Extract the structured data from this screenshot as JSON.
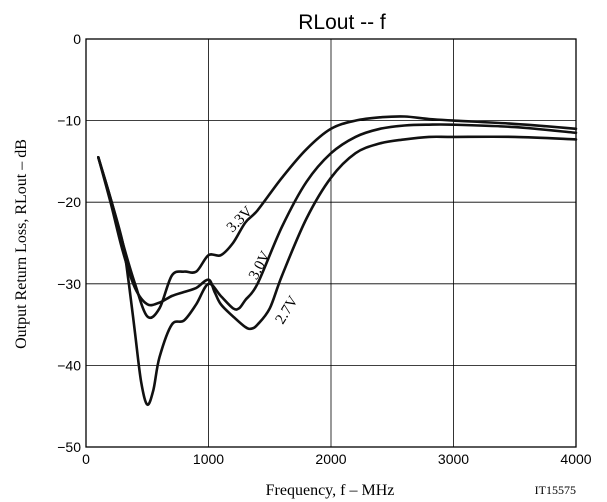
{
  "chart_data": {
    "type": "line",
    "title": "RLout  --  f",
    "xlabel": "Frequency, f  –  MHz",
    "ylabel": "Output Return Loss, RLout  –  dB",
    "xlim": [
      0,
      4000
    ],
    "ylim": [
      -50,
      0
    ],
    "x_ticks": [
      {
        "value": 0,
        "label": "0"
      },
      {
        "value": 1000,
        "label": "1000"
      },
      {
        "value": 2000,
        "label": "2000"
      },
      {
        "value": 3000,
        "label": "3000"
      },
      {
        "value": 4000,
        "label": "4000"
      }
    ],
    "y_ticks": [
      {
        "value": 0,
        "label": "0"
      },
      {
        "value": -10,
        "label": "−10"
      },
      {
        "value": -20,
        "label": "−20"
      },
      {
        "value": -30,
        "label": "−30"
      },
      {
        "value": -40,
        "label": "−40"
      },
      {
        "value": -50,
        "label": "−50"
      }
    ],
    "grid": true,
    "line_color": "#111111",
    "series": [
      {
        "name": "3.3V",
        "x": [
          100,
          200,
          300,
          400,
          500,
          600,
          700,
          800,
          900,
          1000,
          1100,
          1200,
          1300,
          1400,
          1600,
          1800,
          2000,
          2200,
          2400,
          2600,
          2800,
          3000,
          3500,
          4000
        ],
        "y": [
          -14.5,
          -19.5,
          -25,
          -30,
          -34,
          -33,
          -29,
          -28.5,
          -28.5,
          -26.5,
          -26.5,
          -25,
          -22.5,
          -21,
          -17,
          -13.5,
          -11,
          -10,
          -9.6,
          -9.5,
          -9.8,
          -10,
          -10.4,
          -11
        ]
      },
      {
        "name": "3.0V",
        "x": [
          100,
          200,
          300,
          350,
          400,
          450,
          500,
          550,
          600,
          700,
          800,
          900,
          1000,
          1100,
          1200,
          1250,
          1300,
          1400,
          1600,
          1800,
          2000,
          2200,
          2400,
          2600,
          2800,
          3000,
          3500,
          4000
        ],
        "y": [
          -14.5,
          -19.5,
          -25,
          -30,
          -36,
          -42,
          -44.8,
          -43,
          -39,
          -35,
          -34.5,
          -32.5,
          -30,
          -31.5,
          -33,
          -33,
          -32,
          -30,
          -23,
          -17.5,
          -14,
          -12,
          -11,
          -10.6,
          -10.5,
          -10.5,
          -10.8,
          -11.5
        ]
      },
      {
        "name": "2.7V",
        "x": [
          100,
          200,
          300,
          400,
          500,
          600,
          700,
          800,
          900,
          1000,
          1050,
          1100,
          1200,
          1300,
          1350,
          1400,
          1500,
          1600,
          1800,
          2000,
          2200,
          2400,
          2600,
          2800,
          3000,
          3500,
          4000
        ],
        "y": [
          -14.5,
          -20,
          -26,
          -30.5,
          -32.5,
          -32.3,
          -31.5,
          -31,
          -30.5,
          -29.5,
          -31,
          -32.5,
          -34,
          -35.3,
          -35.5,
          -35,
          -33,
          -29,
          -22,
          -17,
          -14,
          -12.8,
          -12.3,
          -12,
          -12,
          -12,
          -12.3
        ]
      }
    ],
    "annotations": [
      {
        "text": "3.3V",
        "series": "3.3V",
        "x": 1280,
        "y": -22.5,
        "angle": -45
      },
      {
        "text": "3.0V",
        "series": "3.0V",
        "x": 1450,
        "y": -28,
        "angle": -62
      },
      {
        "text": "2.7V",
        "series": "2.7V",
        "x": 1670,
        "y": -33.5,
        "angle": -58
      }
    ],
    "figure_id": "IT15575"
  }
}
